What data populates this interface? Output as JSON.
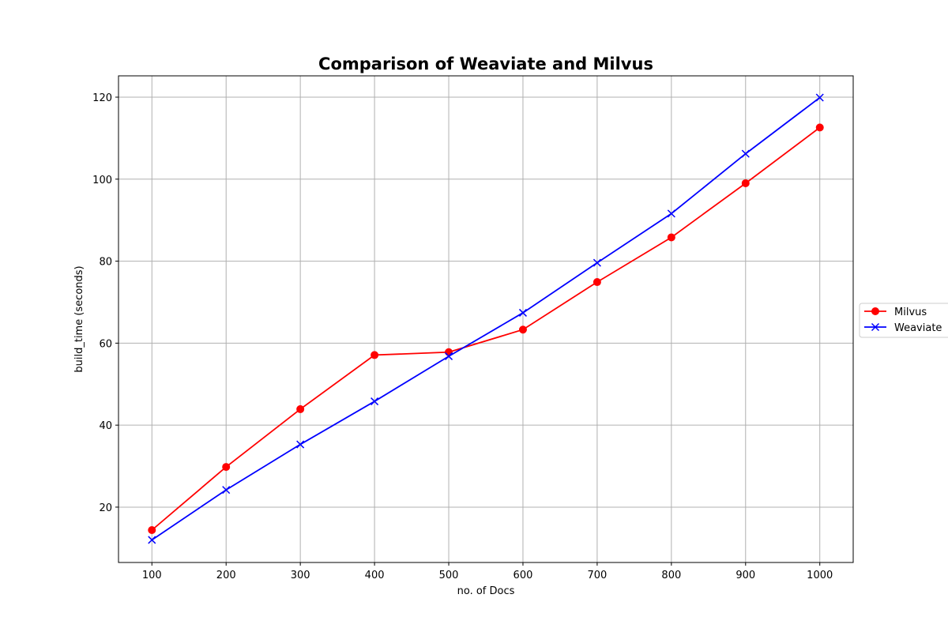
{
  "chart_data": {
    "type": "line",
    "title": "Comparison of Weaviate and Milvus",
    "xlabel": "no. of Docs",
    "ylabel": "build_time (seconds)",
    "x": [
      100,
      200,
      300,
      400,
      500,
      600,
      700,
      800,
      900,
      1000
    ],
    "xticks": [
      100,
      200,
      300,
      400,
      500,
      600,
      700,
      800,
      900,
      1000
    ],
    "yticks": [
      20,
      40,
      60,
      80,
      100,
      120
    ],
    "xlim": [
      55,
      1045
    ],
    "ylim": [
      6.5,
      125.2
    ],
    "grid": true,
    "legend_position": "right",
    "series": [
      {
        "name": "Milvus",
        "color": "#ff0000",
        "marker": "circle",
        "values": [
          14.4,
          29.8,
          43.9,
          57.1,
          57.8,
          63.3,
          74.9,
          85.8,
          99.0,
          112.6
        ]
      },
      {
        "name": "Weaviate",
        "color": "#0000ff",
        "marker": "x",
        "values": [
          12.0,
          24.2,
          35.3,
          45.8,
          56.8,
          67.4,
          79.6,
          91.6,
          106.2,
          119.9
        ]
      }
    ]
  }
}
